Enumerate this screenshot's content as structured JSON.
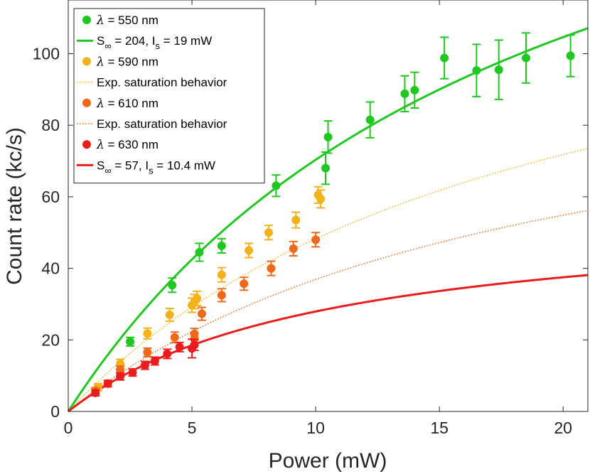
{
  "chart_data": {
    "type": "scatter",
    "xlabel": "Power (mW)",
    "ylabel": "Count rate (kc/s)",
    "xlim": [
      0,
      21
    ],
    "ylim": [
      0,
      115
    ],
    "xticks": [
      0,
      5,
      10,
      15,
      20
    ],
    "yticks": [
      0,
      20,
      40,
      60,
      80,
      100
    ],
    "grid": false,
    "legend_position": "top-left",
    "series": [
      {
        "name": "λ = 550 nm",
        "color": "#1ec81e",
        "points": [
          {
            "x": 2.5,
            "y": 19.5,
            "err": 1.2
          },
          {
            "x": 4.2,
            "y": 35.3,
            "err": 2.0
          },
          {
            "x": 5.3,
            "y": 44.5,
            "err": 2.5
          },
          {
            "x": 6.2,
            "y": 46.3,
            "err": 2.0
          },
          {
            "x": 8.4,
            "y": 63.1,
            "err": 3.0
          },
          {
            "x": 10.4,
            "y": 68.0,
            "err": 4.5
          },
          {
            "x": 10.5,
            "y": 76.7,
            "err": 4.5
          },
          {
            "x": 12.2,
            "y": 81.5,
            "err": 5.0
          },
          {
            "x": 13.6,
            "y": 88.8,
            "err": 5.0
          },
          {
            "x": 14.0,
            "y": 89.8,
            "err": 5.0
          },
          {
            "x": 15.2,
            "y": 98.8,
            "err": 5.8
          },
          {
            "x": 16.5,
            "y": 95.3,
            "err": 7.3
          },
          {
            "x": 17.4,
            "y": 95.5,
            "err": 8.3
          },
          {
            "x": 18.5,
            "y": 98.8,
            "err": 7.0
          },
          {
            "x": 20.3,
            "y": 99.4,
            "err": 5.8
          }
        ]
      },
      {
        "name": "λ = 590 nm",
        "color": "#f3b21a",
        "points": [
          {
            "x": 1.2,
            "y": 6.8,
            "err": 1.0
          },
          {
            "x": 2.1,
            "y": 13.3,
            "err": 1.3
          },
          {
            "x": 3.2,
            "y": 21.8,
            "err": 1.5
          },
          {
            "x": 4.1,
            "y": 27.0,
            "err": 1.8
          },
          {
            "x": 5.0,
            "y": 29.7,
            "err": 2.0
          },
          {
            "x": 5.1,
            "y": 30.7,
            "err": 2.0
          },
          {
            "x": 5.2,
            "y": 31.6,
            "err": 2.0
          },
          {
            "x": 6.2,
            "y": 38.2,
            "err": 2.0
          },
          {
            "x": 7.3,
            "y": 45.0,
            "err": 2.0
          },
          {
            "x": 8.1,
            "y": 50.0,
            "err": 2.0
          },
          {
            "x": 9.2,
            "y": 53.5,
            "err": 2.2
          },
          {
            "x": 10.1,
            "y": 60.5,
            "err": 2.3
          },
          {
            "x": 10.2,
            "y": 59.4,
            "err": 2.5
          }
        ]
      },
      {
        "name": "λ = 610 nm",
        "color": "#ee6a1a",
        "points": [
          {
            "x": 1.1,
            "y": 5.8,
            "err": 0.8
          },
          {
            "x": 2.1,
            "y": 11.7,
            "err": 1.0
          },
          {
            "x": 3.2,
            "y": 16.5,
            "err": 1.2
          },
          {
            "x": 4.3,
            "y": 20.7,
            "err": 1.5
          },
          {
            "x": 5.1,
            "y": 21.7,
            "err": 1.5
          },
          {
            "x": 5.1,
            "y": 20.3,
            "err": 1.5
          },
          {
            "x": 5.4,
            "y": 27.3,
            "err": 1.8
          },
          {
            "x": 6.2,
            "y": 32.5,
            "err": 1.8
          },
          {
            "x": 7.1,
            "y": 35.7,
            "err": 1.8
          },
          {
            "x": 8.2,
            "y": 40.0,
            "err": 2.0
          },
          {
            "x": 9.1,
            "y": 45.5,
            "err": 2.0
          },
          {
            "x": 10.0,
            "y": 48.0,
            "err": 2.0
          }
        ]
      },
      {
        "name": "λ = 630 nm",
        "color": "#ec1c1c",
        "points": [
          {
            "x": 1.1,
            "y": 5.2,
            "err": 0.8
          },
          {
            "x": 1.6,
            "y": 7.8,
            "err": 0.9
          },
          {
            "x": 2.1,
            "y": 9.8,
            "err": 1.0
          },
          {
            "x": 2.6,
            "y": 10.9,
            "err": 1.0
          },
          {
            "x": 3.1,
            "y": 12.9,
            "err": 1.1
          },
          {
            "x": 3.5,
            "y": 14.1,
            "err": 1.1
          },
          {
            "x": 4.0,
            "y": 16.1,
            "err": 1.3
          },
          {
            "x": 4.5,
            "y": 18.0,
            "err": 1.3
          },
          {
            "x": 5.0,
            "y": 17.6,
            "err": 2.6
          },
          {
            "x": 5.1,
            "y": 18.6,
            "err": 1.5
          }
        ]
      }
    ],
    "fits": [
      {
        "name": "S∞ = 204, Is = 19 mW",
        "color": "#1ec81e",
        "S": 204,
        "Is": 19,
        "style": "solid"
      },
      {
        "name": "Exp. saturation behavior",
        "color": "#f3b21a",
        "S": 140,
        "Is": 19,
        "style": "dotted"
      },
      {
        "name": "Exp. saturation behavior",
        "color": "#ee6a1a",
        "S": 107,
        "Is": 19,
        "style": "dotted"
      },
      {
        "name": "S∞ = 57, Is = 10.4 mW",
        "color": "#ec1c1c",
        "S": 57,
        "Is": 10.4,
        "style": "solid"
      }
    ]
  },
  "legend": {
    "entries": [
      {
        "kind": "marker",
        "prefix": "λ",
        "text": " = 550 nm",
        "color": "#1ec81e"
      },
      {
        "kind": "line-solid",
        "prefix": "S",
        "sub": "∞",
        "mid": " = 204, I",
        "sub2": "s",
        "text": " = 19 mW",
        "color": "#1ec81e"
      },
      {
        "kind": "marker",
        "prefix": "λ",
        "text": " = 590 nm",
        "color": "#f3b21a"
      },
      {
        "kind": "line-dotted",
        "text": "Exp. saturation behavior",
        "color": "#f3b21a"
      },
      {
        "kind": "marker",
        "prefix": "λ",
        "text": " = 610 nm",
        "color": "#ee6a1a"
      },
      {
        "kind": "line-dotted",
        "text": "Exp. saturation behavior",
        "color": "#ee6a1a"
      },
      {
        "kind": "marker",
        "prefix": "λ",
        "text": " = 630 nm",
        "color": "#ec1c1c"
      },
      {
        "kind": "line-solid",
        "prefix": "S",
        "sub": "∞",
        "mid": " = 57, I",
        "sub2": "s",
        "text": " = 10.4 mW",
        "color": "#ec1c1c"
      }
    ]
  }
}
